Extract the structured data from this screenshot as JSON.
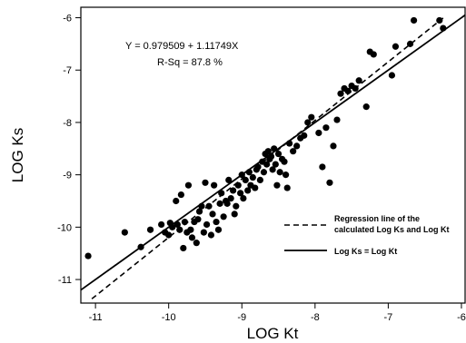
{
  "chart_data": {
    "type": "scatter",
    "title": "",
    "xlabel": "LOG Kt",
    "ylabel": "LOG Ks",
    "xlim": [
      -11.2,
      -5.95
    ],
    "ylim": [
      -11.45,
      -5.8
    ],
    "x_ticks": [
      -11,
      -10,
      -9,
      -8,
      -7,
      -6
    ],
    "y_ticks": [
      -11,
      -10,
      -9,
      -8,
      -7,
      -6
    ],
    "x_tick_labels": [
      "-11",
      "-10",
      "-9",
      "-8",
      "-7",
      "-6"
    ],
    "y_tick_labels": [
      "-11",
      "-10",
      "-9",
      "-8",
      "-7",
      "-6"
    ],
    "grid": false,
    "annotations": [
      "Y = 0.979509 + 1.11749X",
      "R-Sq = 87.8 %"
    ],
    "legend": {
      "placement": "bottom-right",
      "entries": [
        {
          "label_lines": [
            "Regression line of the",
            "calculated Log Ks and Log Kt"
          ],
          "style": "dashed"
        },
        {
          "label_lines": [
            "Log Ks = Log Kt"
          ],
          "style": "solid"
        }
      ]
    },
    "lines": [
      {
        "style": "dashed",
        "intercept": 0.979509,
        "slope": 1.11749,
        "x_range": [
          -11.05,
          -6.25
        ]
      },
      {
        "style": "solid",
        "intercept": 0,
        "slope": 1,
        "x_range": [
          -11.2,
          -5.95
        ]
      }
    ],
    "points": [
      {
        "x": -11.1,
        "y": -10.55
      },
      {
        "x": -10.6,
        "y": -10.1
      },
      {
        "x": -10.38,
        "y": -10.38
      },
      {
        "x": -10.25,
        "y": -10.05
      },
      {
        "x": -10.1,
        "y": -9.95
      },
      {
        "x": -10.05,
        "y": -10.1
      },
      {
        "x": -10.0,
        "y": -10.15
      },
      {
        "x": -9.98,
        "y": -9.92
      },
      {
        "x": -9.95,
        "y": -10.0
      },
      {
        "x": -9.9,
        "y": -9.5
      },
      {
        "x": -9.88,
        "y": -9.95
      },
      {
        "x": -9.85,
        "y": -10.05
      },
      {
        "x": -9.83,
        "y": -9.38
      },
      {
        "x": -9.8,
        "y": -10.4
      },
      {
        "x": -9.78,
        "y": -9.9
      },
      {
        "x": -9.75,
        "y": -10.1
      },
      {
        "x": -9.73,
        "y": -9.2
      },
      {
        "x": -9.7,
        "y": -10.05
      },
      {
        "x": -9.68,
        "y": -10.2
      },
      {
        "x": -9.65,
        "y": -9.9
      },
      {
        "x": -9.62,
        "y": -10.3
      },
      {
        "x": -9.6,
        "y": -9.85
      },
      {
        "x": -9.58,
        "y": -9.7
      },
      {
        "x": -9.55,
        "y": -9.6
      },
      {
        "x": -9.52,
        "y": -10.1
      },
      {
        "x": -9.5,
        "y": -9.15
      },
      {
        "x": -9.48,
        "y": -9.95
      },
      {
        "x": -9.45,
        "y": -9.6
      },
      {
        "x": -9.42,
        "y": -10.15
      },
      {
        "x": -9.4,
        "y": -9.75
      },
      {
        "x": -9.38,
        "y": -9.2
      },
      {
        "x": -9.35,
        "y": -9.9
      },
      {
        "x": -9.32,
        "y": -10.05
      },
      {
        "x": -9.3,
        "y": -9.55
      },
      {
        "x": -9.28,
        "y": -9.35
      },
      {
        "x": -9.25,
        "y": -9.8
      },
      {
        "x": -9.22,
        "y": -9.5
      },
      {
        "x": -9.2,
        "y": -9.55
      },
      {
        "x": -9.18,
        "y": -9.1
      },
      {
        "x": -9.15,
        "y": -9.45
      },
      {
        "x": -9.12,
        "y": -9.3
      },
      {
        "x": -9.1,
        "y": -9.75
      },
      {
        "x": -9.08,
        "y": -9.6
      },
      {
        "x": -9.05,
        "y": -9.2
      },
      {
        "x": -9.02,
        "y": -9.35
      },
      {
        "x": -9.0,
        "y": -9.0
      },
      {
        "x": -8.98,
        "y": -9.45
      },
      {
        "x": -8.95,
        "y": -9.1
      },
      {
        "x": -8.92,
        "y": -9.3
      },
      {
        "x": -8.9,
        "y": -8.95
      },
      {
        "x": -8.88,
        "y": -9.2
      },
      {
        "x": -8.85,
        "y": -9.05
      },
      {
        "x": -8.82,
        "y": -9.25
      },
      {
        "x": -8.8,
        "y": -8.9
      },
      {
        "x": -8.78,
        "y": -8.85
      },
      {
        "x": -8.75,
        "y": -9.1
      },
      {
        "x": -8.72,
        "y": -8.75
      },
      {
        "x": -8.7,
        "y": -8.95
      },
      {
        "x": -8.68,
        "y": -8.6
      },
      {
        "x": -8.66,
        "y": -8.8
      },
      {
        "x": -8.64,
        "y": -8.55
      },
      {
        "x": -8.62,
        "y": -8.7
      },
      {
        "x": -8.6,
        "y": -8.65
      },
      {
        "x": -8.58,
        "y": -8.9
      },
      {
        "x": -8.56,
        "y": -8.5
      },
      {
        "x": -8.54,
        "y": -8.8
      },
      {
        "x": -8.52,
        "y": -9.2
      },
      {
        "x": -8.5,
        "y": -8.6
      },
      {
        "x": -8.48,
        "y": -8.95
      },
      {
        "x": -8.45,
        "y": -8.7
      },
      {
        "x": -8.42,
        "y": -8.75
      },
      {
        "x": -8.4,
        "y": -9.0
      },
      {
        "x": -8.38,
        "y": -9.25
      },
      {
        "x": -8.35,
        "y": -8.4
      },
      {
        "x": -8.3,
        "y": -8.55
      },
      {
        "x": -8.25,
        "y": -8.45
      },
      {
        "x": -8.2,
        "y": -8.3
      },
      {
        "x": -8.15,
        "y": -8.25
      },
      {
        "x": -8.1,
        "y": -8.0
      },
      {
        "x": -8.05,
        "y": -7.9
      },
      {
        "x": -7.95,
        "y": -8.2
      },
      {
        "x": -7.9,
        "y": -8.85
      },
      {
        "x": -7.85,
        "y": -8.1
      },
      {
        "x": -7.8,
        "y": -9.15
      },
      {
        "x": -7.75,
        "y": -8.45
      },
      {
        "x": -7.7,
        "y": -7.95
      },
      {
        "x": -7.65,
        "y": -7.45
      },
      {
        "x": -7.6,
        "y": -7.35
      },
      {
        "x": -7.55,
        "y": -7.4
      },
      {
        "x": -7.5,
        "y": -7.3
      },
      {
        "x": -7.45,
        "y": -7.35
      },
      {
        "x": -7.4,
        "y": -7.2
      },
      {
        "x": -7.3,
        "y": -7.7
      },
      {
        "x": -7.25,
        "y": -6.65
      },
      {
        "x": -7.2,
        "y": -6.7
      },
      {
        "x": -6.95,
        "y": -7.1
      },
      {
        "x": -6.9,
        "y": -6.55
      },
      {
        "x": -6.7,
        "y": -6.5
      },
      {
        "x": -6.65,
        "y": -6.05
      },
      {
        "x": -6.3,
        "y": -6.05
      },
      {
        "x": -6.25,
        "y": -6.2
      }
    ]
  }
}
